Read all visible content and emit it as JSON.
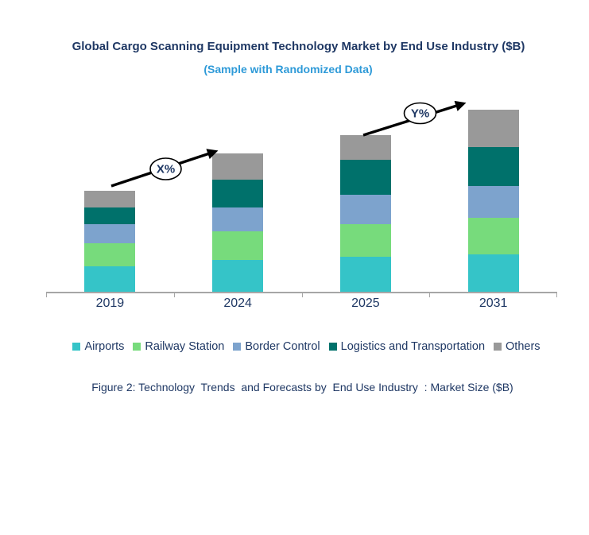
{
  "header": {
    "title": "Global Cargo Scanning Equipment Technology Market by End Use Industry ($B)",
    "subtitle": "(Sample with Randomized Data)"
  },
  "annotations": {
    "growth_label_2019_2024": "X%",
    "growth_label_2025_2031": "Y%"
  },
  "caption": "Figure 2: Technology  Trends  and Forecasts by  End Use Industry  : Market Size ($B)",
  "colors": {
    "title_text": "#1F3864",
    "subtitle_text": "#2E9AD8",
    "axis_text": "#1F3864",
    "legend_text": "#1F3864",
    "caption_text": "#1F3864",
    "axis_line": "#A6A6A6",
    "arrow": "#000000",
    "annotation_ellipse_fill": "#FFFFFF",
    "annotation_ellipse_stroke": "#000000"
  },
  "chart_data": {
    "type": "bar",
    "stacked": true,
    "title": "Global Cargo Scanning Equipment Technology Market by End Use Industry ($B)",
    "unit": "$B",
    "categories": [
      "2019",
      "2024",
      "2025",
      "2031"
    ],
    "series": [
      {
        "name": "Airports",
        "color": "#35C4C8",
        "values": [
          1.6,
          2.0,
          2.2,
          2.35
        ]
      },
      {
        "name": "Railway Station",
        "color": "#77DB7C",
        "values": [
          1.45,
          1.8,
          2.05,
          2.3
        ]
      },
      {
        "name": "Border Control",
        "color": "#7DA3CD",
        "values": [
          1.2,
          1.5,
          1.85,
          2.0
        ]
      },
      {
        "name": "Logistics and Transportation",
        "color": "#00716B",
        "values": [
          1.05,
          1.75,
          2.2,
          2.45
        ]
      },
      {
        "name": "Others",
        "color": "#999999",
        "values": [
          1.05,
          1.65,
          1.55,
          2.35
        ]
      }
    ],
    "totals": [
      6.35,
      8.7,
      9.85,
      11.45
    ],
    "xlabel": "",
    "ylabel": "",
    "y_axis_visible": false,
    "gridlines": false,
    "legend_position": "bottom"
  }
}
